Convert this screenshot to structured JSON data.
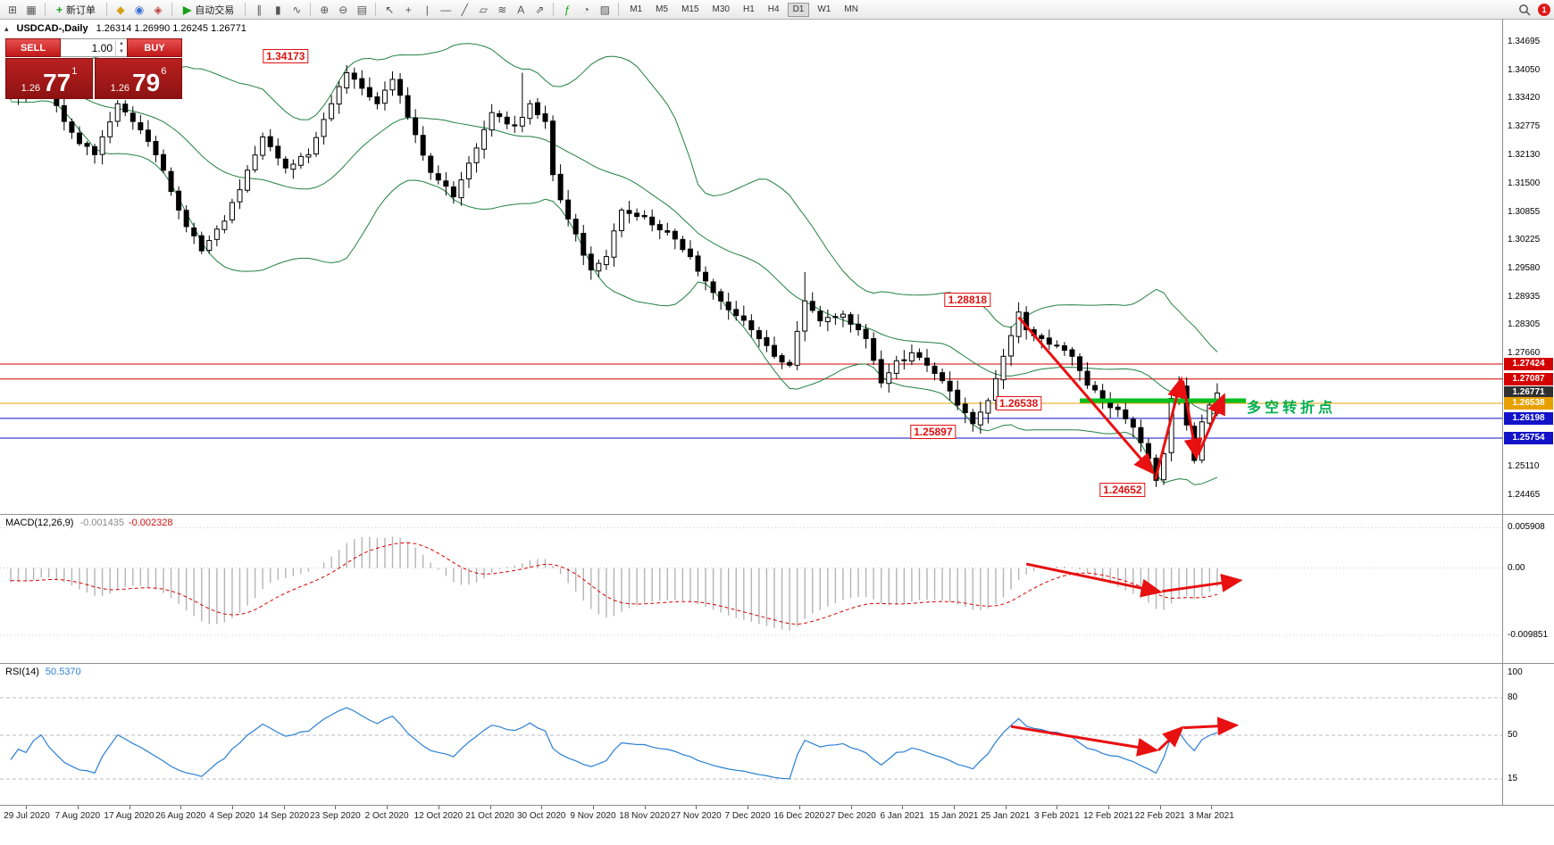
{
  "toolbar": {
    "items": [
      {
        "t": "icon",
        "name": "new-chart-icon",
        "g": "⊞",
        "c": "#555555"
      },
      {
        "t": "icon",
        "name": "profiles-icon",
        "g": "▦",
        "c": "#555555"
      },
      {
        "t": "sep"
      },
      {
        "t": "button",
        "name": "new-order-button",
        "g": "+",
        "gc": "#18a018",
        "label": "新订单"
      },
      {
        "t": "sep"
      },
      {
        "t": "icon",
        "name": "history-center-icon",
        "g": "◆",
        "c": "#d8a018"
      },
      {
        "t": "icon",
        "name": "accounts-icon",
        "g": "◉",
        "c": "#3b6fd4"
      },
      {
        "t": "icon",
        "name": "market-watch-icon",
        "g": "◈",
        "c": "#c04040"
      },
      {
        "t": "sep"
      },
      {
        "t": "button",
        "name": "autotrading-button",
        "g": "▶",
        "gc": "#18a018",
        "label": "自动交易"
      },
      {
        "t": "sep"
      },
      {
        "t": "icon",
        "name": "bar-chart-icon",
        "g": "∥",
        "c": "#555555"
      },
      {
        "t": "icon",
        "name": "candlestick-chart-icon",
        "g": "▮",
        "c": "#555555"
      },
      {
        "t": "icon",
        "name": "line-chart-icon",
        "g": "∿",
        "c": "#555555"
      },
      {
        "t": "sep"
      },
      {
        "t": "icon",
        "name": "zoom-in-icon",
        "g": "⊕",
        "c": "#555555"
      },
      {
        "t": "icon",
        "name": "zoom-out-icon",
        "g": "⊖",
        "c": "#555555"
      },
      {
        "t": "icon",
        "name": "tile-windows-icon",
        "g": "▤",
        "c": "#555555"
      },
      {
        "t": "sep"
      },
      {
        "t": "icon",
        "name": "cursor-icon",
        "g": "↖",
        "c": "#555555"
      },
      {
        "t": "icon",
        "name": "crosshair-icon",
        "g": "+",
        "c": "#555555"
      },
      {
        "t": "icon",
        "name": "vertical-line-icon",
        "g": "|",
        "c": "#555555"
      },
      {
        "t": "icon",
        "name": "horizontal-line-icon",
        "g": "—",
        "c": "#555555"
      },
      {
        "t": "icon",
        "name": "trendline-icon",
        "g": "╱",
        "c": "#555555"
      },
      {
        "t": "icon",
        "name": "channel-icon",
        "g": "▱",
        "c": "#555555"
      },
      {
        "t": "icon",
        "name": "fibonacci-icon",
        "g": "≋",
        "c": "#555555"
      },
      {
        "t": "icon",
        "name": "text-label-icon",
        "g": "A",
        "c": "#555555"
      },
      {
        "t": "icon",
        "name": "arrow-objects-icon",
        "g": "⇗",
        "c": "#555555"
      },
      {
        "t": "sep"
      },
      {
        "t": "icon",
        "name": "indicators-icon",
        "g": "ƒ",
        "c": "#18a018"
      },
      {
        "t": "icon",
        "name": "periods-icon",
        "g": "◔",
        "c": "#555555"
      },
      {
        "t": "icon",
        "name": "templates-icon",
        "g": "▨",
        "c": "#555555"
      },
      {
        "t": "sep"
      },
      {
        "t": "tf",
        "label": "M1"
      },
      {
        "t": "tf",
        "label": "M5"
      },
      {
        "t": "tf",
        "label": "M15"
      },
      {
        "t": "tf",
        "label": "M30"
      },
      {
        "t": "tf",
        "label": "H1"
      },
      {
        "t": "tf",
        "label": "H4"
      },
      {
        "t": "tf",
        "label": "D1",
        "active": true
      },
      {
        "t": "tf",
        "label": "W1"
      },
      {
        "t": "tf",
        "label": "MN"
      },
      {
        "t": "spacer"
      },
      {
        "t": "search",
        "name": "search-icon"
      },
      {
        "t": "notif",
        "name": "notification-badge",
        "label": "1"
      }
    ]
  },
  "symbol_header": {
    "symbol": "USDCAD-,Daily",
    "ohlc": "1.26314 1.26990 1.26245 1.26771"
  },
  "trade_panel": {
    "sell_label": "SELL",
    "buy_label": "BUY",
    "lot_size": "1.00",
    "bid_small": "1.26",
    "bid_big": "77",
    "bid_sup": "1",
    "ask_small": "1.26",
    "ask_big": "79",
    "ask_sup": "6"
  },
  "chart_data": {
    "type": "candlestick",
    "symbol": "USDCAD",
    "period": "Daily",
    "candle_count": 159,
    "ylim": [
      1.24042,
      1.35198
    ],
    "price_ticks": [
      "1.34695",
      "1.34050",
      "1.33420",
      "1.32775",
      "1.32130",
      "1.31500",
      "1.30855",
      "1.30225",
      "1.29580",
      "1.28935",
      "1.28305",
      "1.27660",
      "1.25110",
      "1.24465"
    ],
    "price_badges": [
      {
        "text": "1.27424",
        "bg": "#d40000"
      },
      {
        "text": "1.27087",
        "bg": "#d40000"
      },
      {
        "text": "1.26771",
        "bg": "#303030"
      },
      {
        "text": "1.26538",
        "bg": "#e8a000"
      },
      {
        "text": "1.26198",
        "bg": "#1212c8"
      },
      {
        "text": "1.25754",
        "bg": "#1212c8"
      }
    ],
    "close_anchors": [
      [
        0,
        1.3345
      ],
      [
        4,
        1.3385
      ],
      [
        7,
        1.329
      ],
      [
        9,
        1.324
      ],
      [
        11,
        1.3215
      ],
      [
        14,
        1.333
      ],
      [
        16,
        1.329
      ],
      [
        18,
        1.3245
      ],
      [
        20,
        1.318
      ],
      [
        22,
        1.309
      ],
      [
        25,
        1.2998
      ],
      [
        28,
        1.3065
      ],
      [
        31,
        1.318
      ],
      [
        33,
        1.3255
      ],
      [
        36,
        1.3185
      ],
      [
        39,
        1.3215
      ],
      [
        42,
        1.333
      ],
      [
        44,
        1.34
      ],
      [
        46,
        1.3365
      ],
      [
        48,
        1.333
      ],
      [
        50,
        1.3385
      ],
      [
        52,
        1.33
      ],
      [
        55,
        1.3175
      ],
      [
        58,
        1.312
      ],
      [
        61,
        1.323
      ],
      [
        63,
        1.331
      ],
      [
        66,
        1.328
      ],
      [
        68,
        1.333
      ],
      [
        70,
        1.329
      ],
      [
        71,
        1.317
      ],
      [
        73,
        1.307
      ],
      [
        76,
        1.2955
      ],
      [
        78,
        1.2985
      ],
      [
        80,
        1.309
      ],
      [
        83,
        1.3075
      ],
      [
        86,
        1.304
      ],
      [
        89,
        1.2985
      ],
      [
        91,
        1.293
      ],
      [
        94,
        1.2865
      ],
      [
        97,
        1.282
      ],
      [
        100,
        1.276
      ],
      [
        102,
        1.274
      ],
      [
        104,
        1.2885
      ],
      [
        106,
        1.284
      ],
      [
        109,
        1.2855
      ],
      [
        111,
        1.282
      ],
      [
        112,
        1.28
      ],
      [
        114,
        1.27
      ],
      [
        116,
        1.275
      ],
      [
        118,
        1.2768
      ],
      [
        120,
        1.274
      ],
      [
        122,
        1.2705
      ],
      [
        124,
        1.265
      ],
      [
        126,
        1.2608
      ],
      [
        128,
        1.266
      ],
      [
        130,
        1.276
      ],
      [
        132,
        1.286
      ],
      [
        133,
        1.282
      ],
      [
        135,
        1.28
      ],
      [
        137,
        1.2785
      ],
      [
        139,
        1.276
      ],
      [
        141,
        1.2695
      ],
      [
        143,
        1.266
      ],
      [
        145,
        1.264
      ],
      [
        147,
        1.26
      ],
      [
        148,
        1.2565
      ],
      [
        150,
        1.248
      ],
      [
        151,
        1.254
      ],
      [
        152,
        1.2665
      ],
      [
        153,
        1.269
      ],
      [
        154,
        1.2605
      ],
      [
        155,
        1.2525
      ],
      [
        156,
        1.2612
      ],
      [
        157,
        1.265
      ],
      [
        158,
        1.26771
      ]
    ],
    "candle_overrides": {
      "44": {
        "h": 1.34173
      },
      "67": {
        "h": 1.34
      },
      "104": {
        "h": 1.295
      },
      "126": {
        "l": 1.25897
      },
      "132": {
        "h": 1.28818
      },
      "150": {
        "l": 1.24652
      },
      "153": {
        "h": 1.2715
      },
      "155": {
        "l": 1.2518
      },
      "158": {
        "o": 1.26314,
        "h": 1.2699,
        "l": 1.26245,
        "c": 1.26771
      }
    },
    "bollinger": {
      "period": 20,
      "deviation": 2,
      "color": "#208040"
    },
    "hlines": [
      {
        "p": 1.27424,
        "color": "#d40000",
        "w": 1
      },
      {
        "p": 1.27087,
        "color": "#d40000",
        "w": 1
      },
      {
        "p": 1.26538,
        "color": "#e8a000",
        "w": 1
      },
      {
        "p": 1.26198,
        "color": "#1212c8",
        "w": 1
      },
      {
        "p": 1.25754,
        "color": "#1212c8",
        "w": 1
      }
    ],
    "green_segment": {
      "p": 1.266,
      "i1": 140,
      "x2": 1395,
      "color": "#00c020",
      "w": 5
    },
    "annotations": [
      {
        "text": "1.34173",
        "i": 36.0,
        "p": 1.3438
      },
      {
        "text": "1.28818",
        "i": 125.3,
        "p": 1.2887
      },
      {
        "text": "1.26538",
        "i": 132.0,
        "p": 1.26538
      },
      {
        "text": "1.25897",
        "i": 120.8,
        "p": 1.25897
      },
      {
        "text": "1.24652",
        "i": 145.6,
        "p": 1.2458
      }
    ],
    "label_cn": {
      "text": "多空转折点",
      "color": "#00b050",
      "x": 1396,
      "p": 1.2652
    },
    "arrows_price": [
      {
        "i1": 132.0,
        "p1": 1.2848,
        "i2": 149.6,
        "p2": 1.2497
      },
      {
        "i1": 149.9,
        "p1": 1.2482,
        "i2": 153.3,
        "p2": 1.2709
      },
      {
        "i1": 153.5,
        "p1": 1.2705,
        "i2": 155.3,
        "p2": 1.2532
      },
      {
        "i1": 155.5,
        "p1": 1.2538,
        "i2": 158.9,
        "p2": 1.2672
      }
    ],
    "macd": {
      "label": "MACD(12,26,9)",
      "values": [
        "-0.001435",
        "-0.002328"
      ],
      "ticks": [
        0.005908,
        0,
        -0.009851
      ],
      "tick_labels": [
        "0.005908",
        "0.00",
        "-0.009851"
      ],
      "ylim": [
        -0.0139,
        0.0078
      ],
      "arrows": [
        {
          "i1": 133.0,
          "v1": 0.0006,
          "i2": 150.5,
          "v2": -0.0035
        },
        {
          "i1": 150.8,
          "v1": -0.0034,
          "i2": 161.0,
          "v2": -0.0018
        }
      ]
    },
    "rsi": {
      "label": "RSI(14)",
      "value": "50.5370",
      "levels": [
        100,
        80,
        50,
        15
      ],
      "level_labels": [
        "100",
        "80",
        "50",
        "15"
      ],
      "arrows": [
        {
          "i1": 131.0,
          "r1": 57,
          "i2": 150.0,
          "r2": 38
        },
        {
          "i1": 150.3,
          "r1": 38,
          "i2": 153.4,
          "r2": 56
        },
        {
          "i1": 153.6,
          "r1": 56,
          "i2": 160.5,
          "r2": 58
        }
      ]
    },
    "x_ticks": [
      "29 Jul 2020",
      "7 Aug 2020",
      "17 Aug 2020",
      "26 Aug 2020",
      "4 Sep 2020",
      "14 Sep 2020",
      "23 Sep 2020",
      "2 Oct 2020",
      "12 Oct 2020",
      "21 Oct 2020",
      "30 Oct 2020",
      "9 Nov 2020",
      "18 Nov 2020",
      "27 Nov 2020",
      "7 Dec 2020",
      "16 Dec 2020",
      "27 Dec 2020",
      "6 Jan 2021",
      "15 Jan 2021",
      "25 Jan 2021",
      "3 Feb 2021",
      "12 Feb 2021",
      "22 Feb 2021",
      "3 Mar 2021"
    ]
  }
}
